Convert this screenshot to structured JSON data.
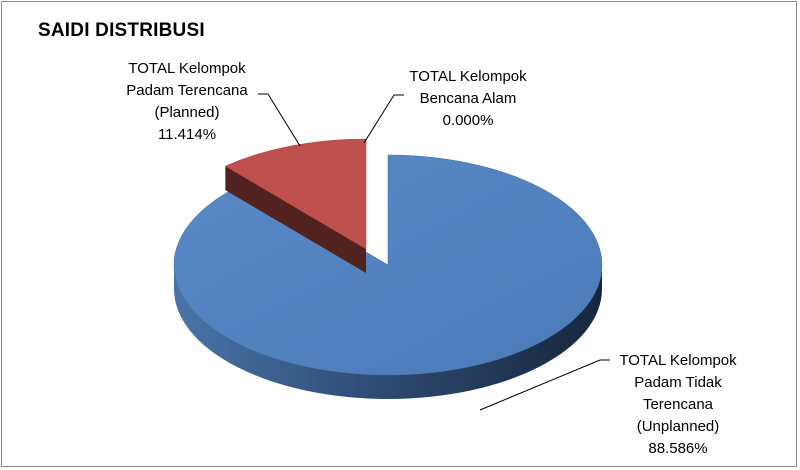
{
  "chart_data": {
    "type": "pie",
    "title": "SAIDI DISTRIBUSI",
    "slices": [
      {
        "label_lines": [
          "TOTAL Kelompok",
          "Padam Tidak",
          "Terencana",
          "(Unplanned)"
        ],
        "value_text": "88.586%",
        "value": 88.586,
        "color": "#4f81bd"
      },
      {
        "label_lines": [
          "TOTAL Kelompok",
          "Padam Terencana",
          "(Planned)"
        ],
        "value_text": "11.414%",
        "value": 11.414,
        "color": "#c0504d"
      },
      {
        "label_lines": [
          "TOTAL Kelompok",
          "Bencana Alam"
        ],
        "value_text": "0.000%",
        "value": 0.0,
        "color": "#9bbb59"
      }
    ],
    "style": "3d-exploded",
    "legend": "none"
  }
}
